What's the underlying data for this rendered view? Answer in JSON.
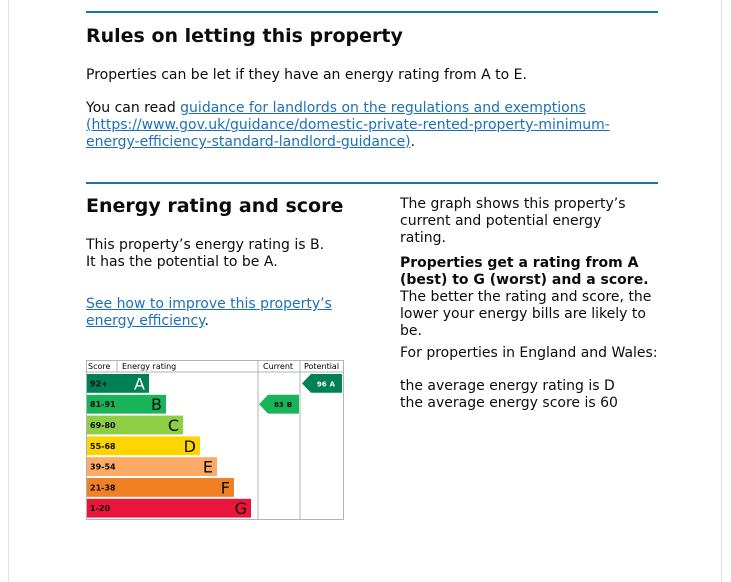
{
  "letting": {
    "title": "Rules on letting this property",
    "paragraph": "Properties can be let if they have an energy rating from A to E.",
    "guidance_prefix": "You can read ",
    "guidance_link": "guidance for landlords on the regulations and exemptions",
    "guidance_url": "(https://www.gov.uk/guidance/domestic-private-rented-property-minimum-energy-efficiency-standard-landlord-guidance)",
    "guidance_suffix": "."
  },
  "energy": {
    "title": "Energy rating and score",
    "summary": "This property’s energy rating is B. It has the potential to be A.",
    "improve_link": "See how to improve this property’s energy efficiency",
    "improve_suffix": ".",
    "graph_note": "The graph shows this property’s current and potential energy rating.",
    "rating_bold": "Properties get a rating from A (best) to G (worst) and a score.",
    "rating_rest": " The better the rating and score, the lower your energy bills are likely to be.",
    "region": "For properties in England and Wales:",
    "average_rating": "the average energy rating is D",
    "average_score": "the average energy score is 60",
    "chart": {
      "headers": [
        "Score",
        "Energy rating",
        "Current",
        "Potential"
      ],
      "bands": [
        {
          "range": "92+",
          "letter": "A",
          "color": "#008054"
        },
        {
          "range": "81-91",
          "letter": "B",
          "color": "#19b459"
        },
        {
          "range": "69-80",
          "letter": "C",
          "color": "#8dce46"
        },
        {
          "range": "55-68",
          "letter": "D",
          "color": "#ffd500"
        },
        {
          "range": "39-54",
          "letter": "E",
          "color": "#fcaa65"
        },
        {
          "range": "21-38",
          "letter": "F",
          "color": "#ef8023"
        },
        {
          "range": "1-20",
          "letter": "G",
          "color": "#e9153b"
        }
      ],
      "current": {
        "score": 83,
        "rating": "B"
      },
      "potential": {
        "score": 96,
        "rating": "A"
      }
    }
  }
}
